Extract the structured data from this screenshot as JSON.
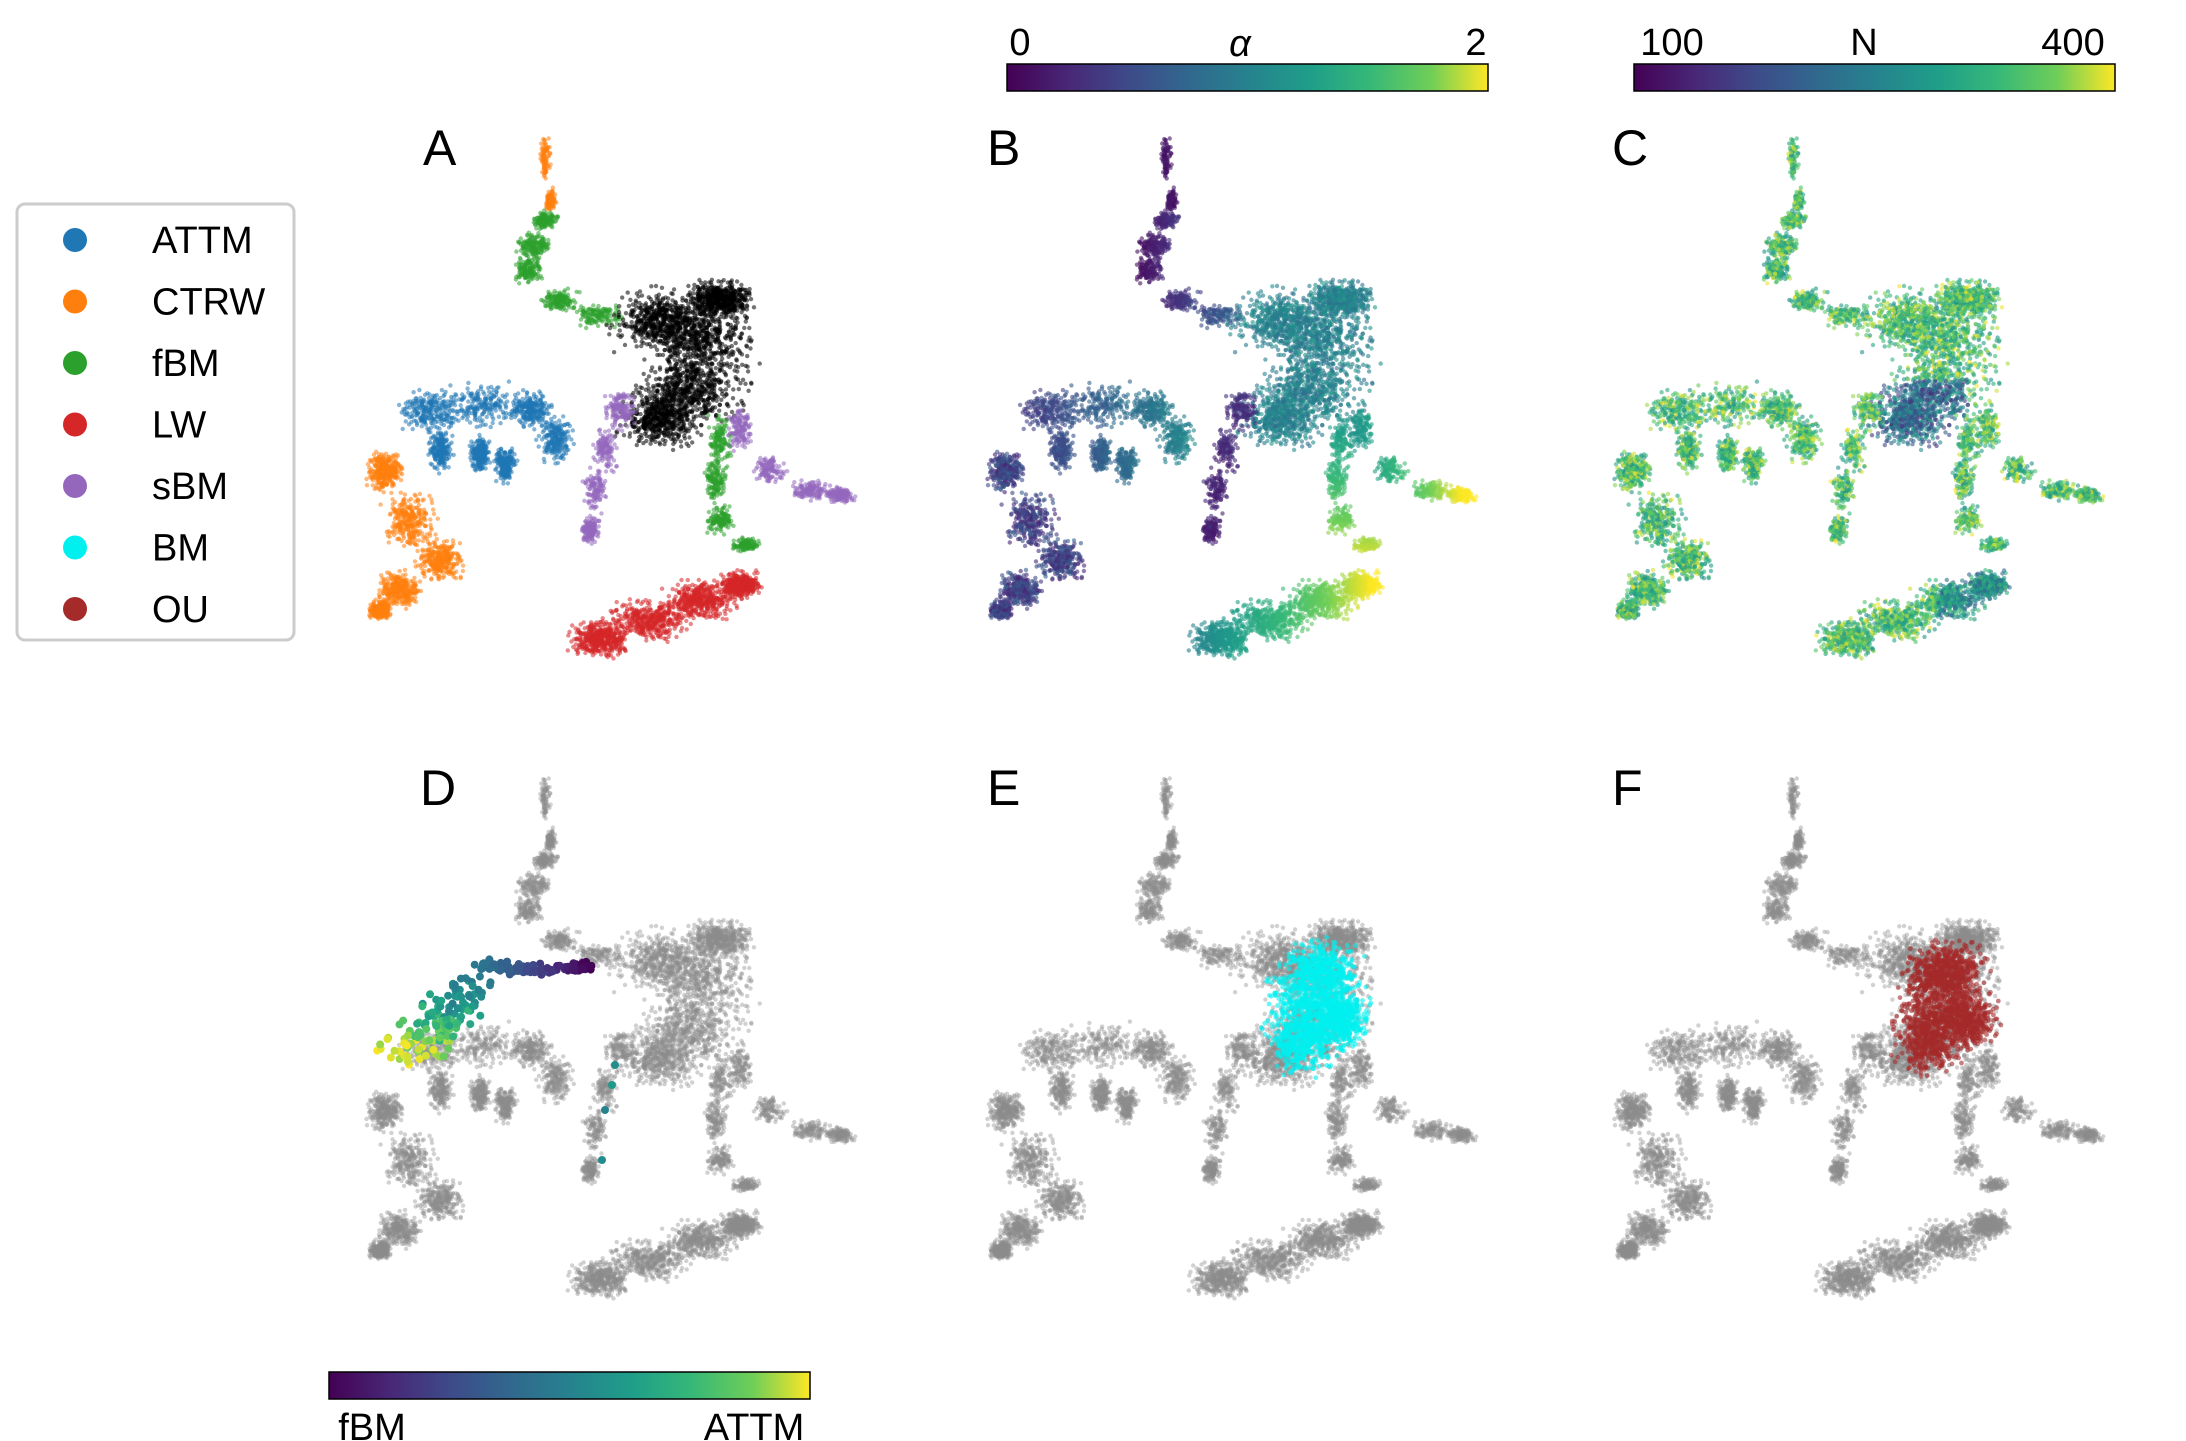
{
  "chart_data": {
    "type": "scatter",
    "description_free": true,
    "panels": [
      {
        "letter": "A",
        "coloring": "model"
      },
      {
        "letter": "B",
        "coloring": "alpha"
      },
      {
        "letter": "C",
        "coloring": "N"
      },
      {
        "letter": "D",
        "coloring": "fbm_attm_transition"
      },
      {
        "letter": "E",
        "coloring": "highlight_BM"
      },
      {
        "letter": "F",
        "coloring": "highlight_OU"
      }
    ],
    "legend": {
      "placement": "left",
      "items": [
        {
          "label": "ATTM",
          "color": "#1f77b4"
        },
        {
          "label": "CTRW",
          "color": "#ff7f0e"
        },
        {
          "label": "fBM",
          "color": "#2ca02c"
        },
        {
          "label": "LW",
          "color": "#d62728"
        },
        {
          "label": "sBM",
          "color": "#9467bd"
        },
        {
          "label": "BM",
          "color": "#00f0f0"
        },
        {
          "label": "OU",
          "color": "#a52a2a"
        }
      ]
    },
    "colorbars": [
      {
        "name": "alpha",
        "symbol": "α",
        "min_label": "0",
        "max_label": "2",
        "range": [
          0,
          2
        ],
        "colormap": "viridis"
      },
      {
        "name": "N",
        "label": "N",
        "min_label": "100",
        "max_label": "400",
        "range": [
          100,
          400
        ],
        "colormap": "viridis"
      },
      {
        "name": "transition",
        "min_label": "fBM",
        "max_label": "ATTM",
        "colormap": "viridis"
      }
    ],
    "background_color": "#8c8c8c",
    "highlight_colors": {
      "BM": "#00f0f0",
      "OU": "#a52a2a"
    }
  },
  "labels": {
    "A": "A",
    "B": "B",
    "C": "C",
    "D": "D",
    "E": "E",
    "F": "F"
  },
  "legend_labels": [
    "ATTM",
    "CTRW",
    "fBM",
    "LW",
    "sBM",
    "BM",
    "OU"
  ],
  "cbar_alpha": {
    "min": "0",
    "max": "2",
    "symbol": "α"
  },
  "cbar_n": {
    "min": "100",
    "label": "N",
    "max": "400"
  },
  "cbar_transition": {
    "min": "fBM",
    "max": "ATTM"
  }
}
